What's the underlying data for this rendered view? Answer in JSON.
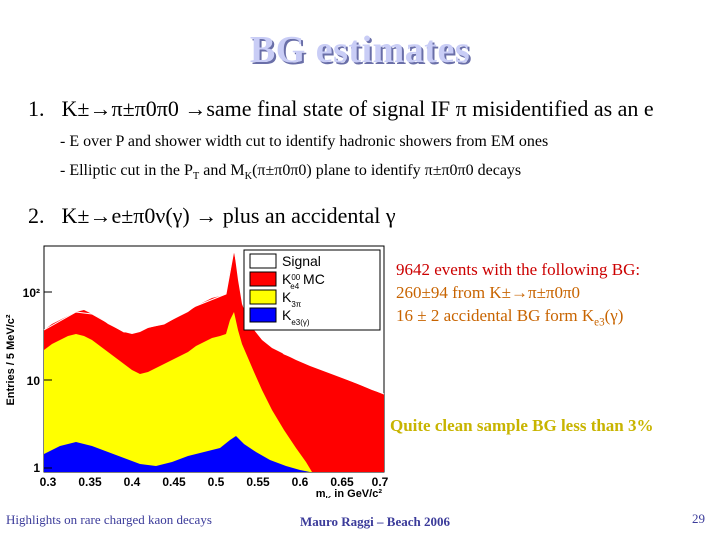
{
  "slide": {
    "title": "BG estimates",
    "item1_number": "1.",
    "item1_decay": "K±→π±π0π0",
    "item1_text": "→same final state of signal IF π misidentified as an e",
    "sub1": "- E over P and shower width cut to identify hadronic showers from EM ones",
    "sub2_a": "- Elliptic cut in the P",
    "sub2_b": "T",
    "sub2_c": " and M",
    "sub2_d": "K",
    "sub2_e": "(π±π0π0) plane to identify π±π0π0 decays",
    "item2_number": "2.",
    "item2_text": "K±→e±π0ν(γ) → plus an accidental γ",
    "note_line1_num": "9642 events",
    "note_line1_rest": " with the following BG:",
    "note_line2": "260±94 from K±→π±π0π0",
    "note_line3_a": "16 ±  2  accidental BG form K",
    "note_line3_b": "e3",
    "note_line3_c": "(γ)",
    "clean_text": "Quite clean sample BG less than 3%",
    "footer_left": "Highlights on rare charged kaon decays",
    "footer_mid": "Mauro Raggi – Beach 2006",
    "page_number": "29"
  },
  "plot": {
    "ylabel": "Entries / 5 MeV/c²",
    "xlabel_a": "m",
    "xlabel_b": "K",
    "xlabel_c": " in GeV/c²",
    "y_ticks": [
      "10²",
      "10",
      "1"
    ],
    "x_ticks": [
      "0.3",
      "0.35",
      "0.4",
      "0.45",
      "0.5",
      "0.55",
      "0.6",
      "0.65",
      "0.7"
    ],
    "legend": {
      "signal": "Signal",
      "ke4_a": "K",
      "ke4_sup": "00",
      "ke4_sub": "e4",
      "ke4_mc": " MC",
      "k3pi_a": "K",
      "k3pi_sub": "3π",
      "ke3_a": "K",
      "ke3_sub": "e3(γ)"
    },
    "colors": {
      "signal": "#ffffff",
      "red": "#ff0000",
      "yellow": "#ffff00",
      "blue": "#0000ff"
    }
  }
}
